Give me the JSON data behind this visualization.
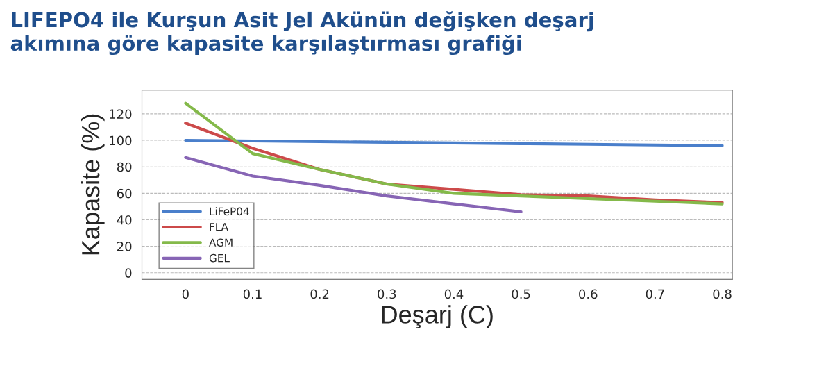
{
  "chart_data": {
    "type": "line",
    "title": "LIFEPO4 ile Kurşun Asit Jel Akünün değişken deşarj\nakımına göre kapasite karşılaştırması grafiği",
    "xlabel": "Deşarj (C)",
    "ylabel": "Kapasite (%)",
    "x": [
      0,
      0.1,
      0.2,
      0.3,
      0.4,
      0.5,
      0.6,
      0.7,
      0.8
    ],
    "series": [
      {
        "name": "LiFeP04",
        "color": "#4a7fcb",
        "values": [
          100,
          99.5,
          99,
          98.5,
          98,
          97.5,
          97,
          96.5,
          96
        ]
      },
      {
        "name": "FLA",
        "color": "#cc4a4a",
        "values": [
          113,
          94,
          78,
          67,
          63,
          59,
          58,
          55,
          53
        ]
      },
      {
        "name": "AGM",
        "color": "#84b94a",
        "values": [
          128,
          90,
          78,
          67,
          60,
          58,
          56,
          54,
          52
        ]
      },
      {
        "name": "GEL",
        "color": "#8765b5",
        "values": [
          87,
          73,
          66,
          58,
          52,
          46,
          null,
          null,
          null
        ]
      }
    ],
    "xlim": [
      -0.065,
      0.815
    ],
    "xticks": [
      {
        "value": 0,
        "label": "0"
      },
      0.1,
      0.2,
      0.3,
      0.4,
      0.5,
      0.6,
      0.7,
      0.8
    ],
    "ylim": [
      -5,
      138
    ],
    "yticks": [
      0,
      20,
      40,
      60,
      80,
      100,
      120
    ],
    "grid": "y",
    "legend": "bottom left",
    "marker": "none",
    "line_style": "solid"
  }
}
